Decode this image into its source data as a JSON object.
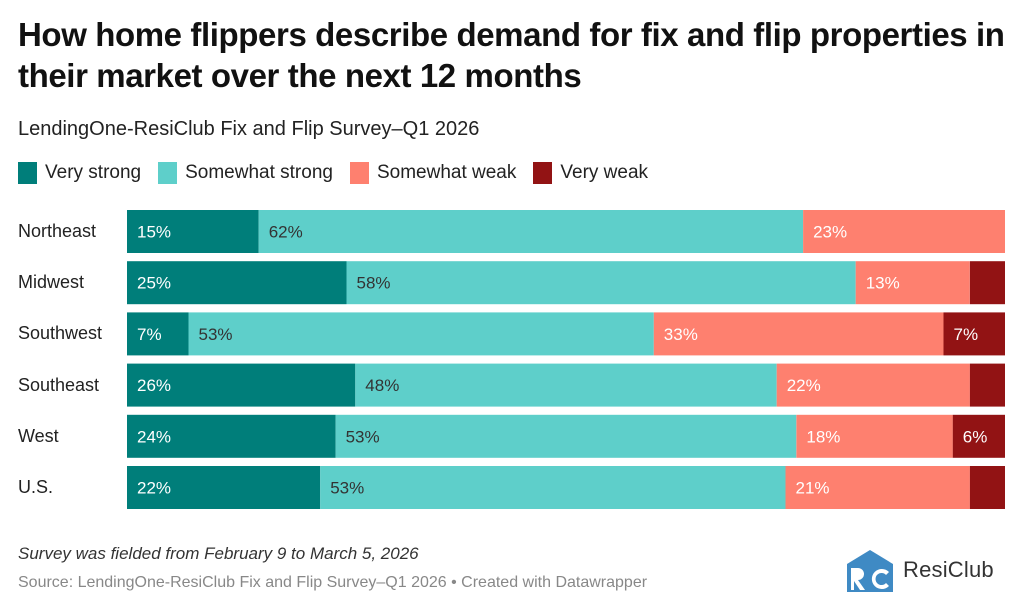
{
  "header": {
    "title": "How home flippers describe demand for fix and flip properties in their market over the next 12 months",
    "subtitle": "LendingOne-ResiClub Fix and Flip Survey–Q1 2026"
  },
  "legend": [
    {
      "label": "Very strong",
      "color": "#007e7a"
    },
    {
      "label": "Somewhat strong",
      "color": "#5ecfca"
    },
    {
      "label": "Somewhat weak",
      "color": "#fe806f"
    },
    {
      "label": "Very weak",
      "color": "#921314"
    }
  ],
  "chart_data": {
    "type": "bar",
    "orientation": "horizontal",
    "stacked": true,
    "title": "How home flippers describe demand for fix and flip properties in their market over the next 12 months",
    "subtitle": "LendingOne-ResiClub Fix and Flip Survey–Q1 2026",
    "categories": [
      "Northeast",
      "Midwest",
      "Southwest",
      "Southeast",
      "West",
      "U.S."
    ],
    "series": [
      {
        "name": "Very strong",
        "color": "#007e7a",
        "label_color": "#ffffff",
        "values": [
          15,
          25,
          7,
          26,
          24,
          22
        ],
        "labels": [
          "15%",
          "25%",
          "7%",
          "26%",
          "24%",
          "22%"
        ]
      },
      {
        "name": "Somewhat strong",
        "color": "#5ecfca",
        "label_color": "#333333",
        "values": [
          62,
          58,
          53,
          48,
          53,
          53
        ],
        "labels": [
          "62%",
          "58%",
          "53%",
          "48%",
          "53%",
          "53%"
        ]
      },
      {
        "name": "Somewhat weak",
        "color": "#fe806f",
        "label_color": "#ffffff",
        "values": [
          23,
          13,
          33,
          22,
          18,
          21
        ],
        "labels": [
          "23%",
          "13%",
          "33%",
          "22%",
          "18%",
          "21%"
        ]
      },
      {
        "name": "Very weak",
        "color": "#921314",
        "label_color": "#ffffff",
        "values": [
          0,
          4,
          7,
          4,
          6,
          4
        ],
        "labels": [
          "",
          "",
          "7%",
          "",
          "6%",
          ""
        ]
      }
    ],
    "xlim": [
      0,
      100
    ],
    "unit": "%",
    "grid": false,
    "legend_position": "top-left"
  },
  "footer": {
    "note": "Survey was fielded from February 9 to March 5, 2026",
    "source": "Source: LendingOne-ResiClub Fix and Flip Survey–Q1 2026 • Created with Datawrapper"
  },
  "logo": {
    "text": "ResiClub",
    "color": "#3f8ac4"
  }
}
